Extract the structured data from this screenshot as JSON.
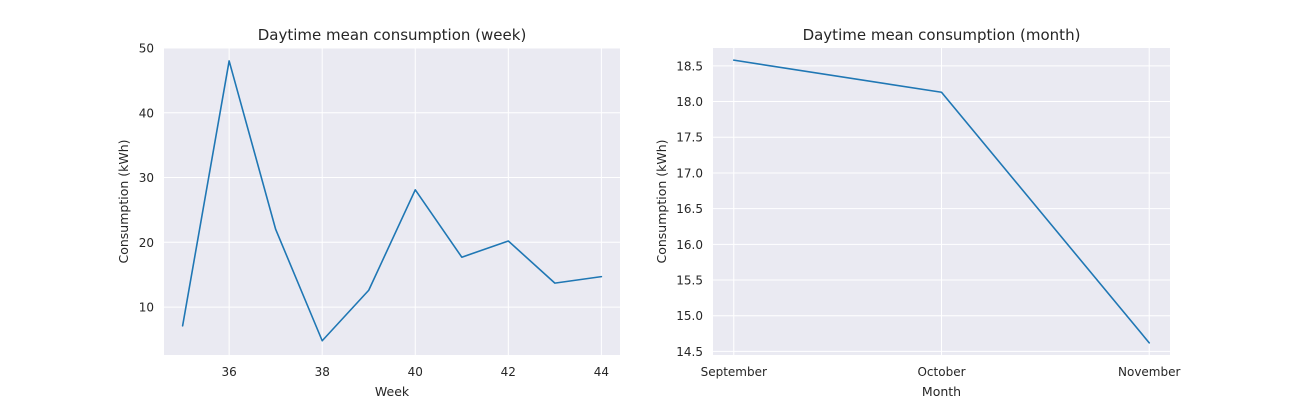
{
  "chart_data": [
    {
      "type": "line",
      "title": "Daytime mean consumption (week)",
      "xlabel": "Week",
      "ylabel": "Consumption (kWh)",
      "x": [
        35,
        36,
        37,
        38,
        39,
        40,
        41,
        42,
        43,
        44
      ],
      "series": [
        {
          "values": [
            7.1,
            48.0,
            22.0,
            4.8,
            12.6,
            28.1,
            17.7,
            20.2,
            13.7,
            14.7
          ]
        }
      ],
      "xlim": [
        34.6,
        44.4
      ],
      "ylim": [
        2.6,
        50.0
      ],
      "xticks": [
        36,
        38,
        40,
        42,
        44
      ],
      "yticks": [
        10,
        20,
        30,
        40,
        50
      ],
      "grid": true,
      "line_color": "#1f77b4"
    },
    {
      "type": "line",
      "title": "Daytime mean consumption (month)",
      "xlabel": "Month",
      "ylabel": "Consumption (kWh)",
      "categories": [
        "September",
        "October",
        "November"
      ],
      "series": [
        {
          "values": [
            18.58,
            18.13,
            14.62
          ]
        }
      ],
      "xlim": [
        -0.1,
        2.1
      ],
      "ylim": [
        14.45,
        18.75
      ],
      "yticks": [
        14.5,
        15.0,
        15.5,
        16.0,
        16.5,
        17.0,
        17.5,
        18.0,
        18.5
      ],
      "yticklabels": [
        "14.5",
        "15.0",
        "15.5",
        "16.0",
        "16.5",
        "17.0",
        "17.5",
        "18.0",
        "18.5"
      ],
      "grid": true,
      "line_color": "#1f77b4"
    }
  ]
}
